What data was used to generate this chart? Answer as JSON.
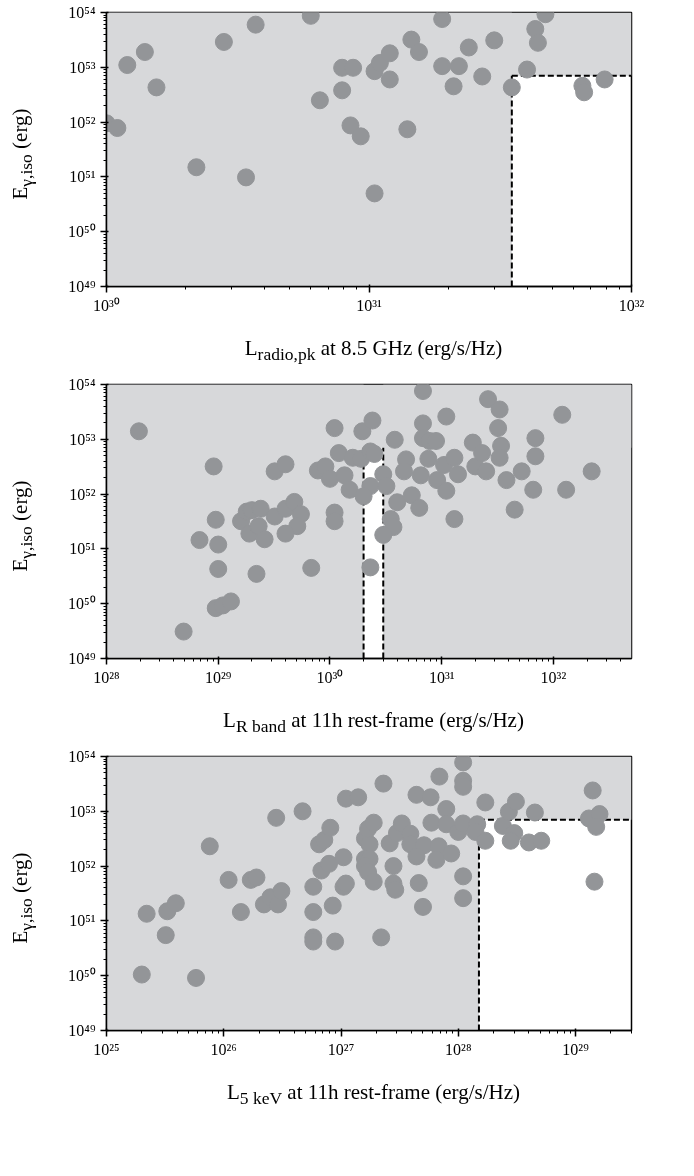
{
  "chart_data": [
    {
      "type": "scatter",
      "xlabel": "L$_{radio,pk}$ at 8.5 GHz (erg/s/Hz)",
      "ylabel": "E$_{γ,iso}$ (erg)",
      "color": "#939598",
      "marker": "circle",
      "log": "xy",
      "xlim": [
        1e+30,
        1e+32
      ],
      "ylim": [
        1e+49,
        1e+54
      ],
      "xticks": [
        {
          "value": 1e+30,
          "label": "10³⁰"
        },
        {
          "value": 1e+31,
          "label": "10³¹"
        },
        {
          "value": 1e+32,
          "label": "10³²"
        }
      ],
      "yticks": [
        {
          "value": 1e+49,
          "label": "10⁴⁹"
        },
        {
          "value": 1e+50,
          "label": "10⁵⁰"
        },
        {
          "value": 1e+51,
          "label": "10⁵¹"
        },
        {
          "value": 1e+52,
          "label": "10⁵²"
        },
        {
          "value": 1e+53,
          "label": "10⁵³"
        },
        {
          "value": 1e+54,
          "label": "10⁵⁴"
        }
      ],
      "bands": [
        {
          "axis": "x",
          "from": 1e+30,
          "to": 3.5e+31,
          "color": "#d7d8da"
        },
        {
          "axis": "y",
          "from": 7e+52,
          "to": 1e+54,
          "color": "#d7d8da"
        }
      ],
      "ref_lines": [
        {
          "axis": "x",
          "value": 3.5e+31,
          "color": "#000000",
          "line_style": "dashed"
        },
        {
          "axis": "y",
          "value": 7e+52,
          "color": "#000000",
          "line_style": "dashed"
        }
      ],
      "x": [
        1e+30,
        1.1e+30,
        1.2e+30,
        1.4e+30,
        1.55e+30,
        2.2e+30,
        2.8e+30,
        3.4e+30,
        3.7e+30,
        6e+30,
        6.5e+30,
        7.9e+30,
        8.7e+30,
        7.9e+30,
        8.5e+30,
        9.3e+30,
        1.05e+31,
        1.1e+31,
        1.2e+31,
        1.2e+31,
        1.05e+31,
        1.4e+31,
        1.45e+31,
        1.55e+31,
        1.9e+31,
        1.9e+31,
        2.1e+31,
        2.2e+31,
        2.4e+31,
        2.7e+31,
        3e+31,
        3.5e+31,
        4e+31,
        4.3e+31,
        4.4e+31,
        4.7e+31,
        6.5e+31,
        6.6e+31,
        7.9e+31
      ],
      "values": [
        9.5e+51,
        7.8e+51,
        1.1e+53,
        1.9e+53,
        4.3e+52,
        1.5e+51,
        2.9e+53,
        9.8e+50,
        6e+53,
        8.7e+53,
        2.5e+52,
        9.8e+52,
        9.8e+52,
        3.8e+52,
        8.7e+51,
        5.5e+51,
        8.5e+52,
        1.2e+53,
        1.8e+53,
        6e+52,
        5e+50,
        7.4e+51,
        3.2e+53,
        1.9e+53,
        7.6e+53,
        1.05e+53,
        4.5e+52,
        1.05e+53,
        2.3e+53,
        6.8e+52,
        3.1e+53,
        4.3e+52,
        9.1e+52,
        5e+53,
        2.8e+53,
        9.3e+53,
        4.6e+52,
        3.5e+52,
        6e+52
      ]
    },
    {
      "type": "scatter",
      "xlabel": "L$_{R band}$ at 11h rest-frame (erg/s/Hz)",
      "ylabel": "E$_{γ,iso}$ (erg)",
      "color": "#939598",
      "marker": "circle",
      "log": "xy",
      "xlim": [
        1e+28,
        5e+32
      ],
      "ylim": [
        1e+49,
        1e+54
      ],
      "xticks": [
        {
          "value": 1e+28,
          "label": "10²⁸"
        },
        {
          "value": 1e+29,
          "label": "10²⁹"
        },
        {
          "value": 1e+30,
          "label": "10³⁰"
        },
        {
          "value": 1e+31,
          "label": "10³¹"
        },
        {
          "value": 1e+32,
          "label": "10³²"
        }
      ],
      "yticks": [
        {
          "value": 1e+49,
          "label": "10⁴⁹"
        },
        {
          "value": 1e+50,
          "label": "10⁵⁰"
        },
        {
          "value": 1e+51,
          "label": "10⁵¹"
        },
        {
          "value": 1e+52,
          "label": "10⁵²"
        },
        {
          "value": 1e+53,
          "label": "10⁵³"
        },
        {
          "value": 1e+54,
          "label": "10⁵⁴"
        }
      ],
      "bands": [
        {
          "axis": "x",
          "from": 1e+28,
          "to": 2e+30,
          "color": "#d7d8da"
        },
        {
          "axis": "x",
          "from": 3e+30,
          "to": 5e+32,
          "color": "#d7d8da"
        },
        {
          "axis": "y",
          "from": 7e+52,
          "to": 1e+54,
          "color": "#d7d8da"
        }
      ],
      "ref_lines": [
        {
          "axis": "x",
          "value": 2e+30,
          "color": "#000000",
          "line_style": "dashed"
        },
        {
          "axis": "x",
          "value": 3e+30,
          "color": "#000000",
          "line_style": "dashed"
        }
      ],
      "x": [
        1.95e+28,
        4.9e+28,
        9.1e+28,
        9.5e+28,
        6.8e+28,
        1e+29,
        1e+29,
        9.5e+28,
        1.1e+29,
        1.3e+29,
        2.2e+29,
        1.6e+29,
        1.8e+29,
        2e+29,
        2.4e+29,
        1.9e+29,
        2.3e+29,
        2.6e+29,
        3.2e+29,
        3.2e+29,
        4e+29,
        4e+29,
        4.8e+29,
        5.5e+29,
        5.1e+29,
        4e+29,
        6.8e+29,
        7.8e+29,
        9.1e+29,
        1e+30,
        1.1e+30,
        1.2e+30,
        1.35e+30,
        1.5e+30,
        1.1e+30,
        1.1e+30,
        1.6e+30,
        1.9e+30,
        1.95e+30,
        2.4e+30,
        2.3e+30,
        2.5e+30,
        2.3e+30,
        2e+30,
        2.3e+30,
        3e+30,
        3.2e+30,
        4e+30,
        3.5e+30,
        3.7e+30,
        3e+30,
        3.8e+30,
        4.8e+30,
        4.6e+30,
        5.4e+30,
        6.3e+30,
        6.5e+30,
        6.8e+30,
        6.8e+30,
        6.8e+30,
        7.8e+30,
        8.9e+30,
        7.6e+30,
        9.1e+30,
        1.1e+31,
        1.05e+31,
        1.1e+31,
        1.3e+31,
        1.4e+31,
        1.3e+31,
        1.9e+31,
        2e+31,
        2.3e+31,
        2.5e+31,
        2.6e+31,
        3.3e+31,
        3.2e+31,
        3.4e+31,
        3.3e+31,
        3.8e+31,
        4.5e+31,
        5.2e+31,
        6.9e+31,
        6.9e+31,
        6.6e+31,
        1.2e+32,
        1.3e+32,
        2.2e+32
      ],
      "values": [
        1.4e+53,
        3.1e+49,
        3.2e+52,
        3.4e+51,
        1.45e+51,
        1.2e+51,
        4.3e+50,
        8.3e+49,
        9.3e+49,
        1.1e+50,
        3.5e+50,
        3.2e+51,
        4.8e+51,
        5.1e+51,
        5.4e+51,
        1.9e+51,
        2.6e+51,
        1.5e+51,
        3.9e+51,
        2.6e+52,
        3.5e+52,
        5.4e+51,
        7.2e+51,
        4.3e+51,
        2.6e+51,
        1.9e+51,
        4.5e+50,
        2.7e+52,
        3.2e+52,
        1.9e+52,
        1.6e+53,
        5.6e+52,
        2.2e+52,
        1.2e+52,
        4.6e+51,
        3.2e+51,
        4.6e+52,
        4.4e+52,
        1.4e+53,
        2.2e+53,
        6e+52,
        5.4e+52,
        1.4e+52,
        9.1e+51,
        4.6e+50,
        2.3e+52,
        1.4e+52,
        7.1e+51,
        3.5e+51,
        2.5e+51,
        1.8e+51,
        9.8e+52,
        4.3e+52,
        2.6e+52,
        9.5e+51,
        5.6e+51,
        2.2e+52,
        7.6e+53,
        1.95e+53,
        1.05e+53,
        9.3e+52,
        9.3e+52,
        4.4e+52,
        1.8e+52,
        1.15e+52,
        3.4e+52,
        2.6e+53,
        4.6e+52,
        2.3e+52,
        3.5e+51,
        8.7e+52,
        3.2e+52,
        5.6e+52,
        2.6e+52,
        5.4e+53,
        3.5e+53,
        1.6e+53,
        7.6e+52,
        4.6e+52,
        1.8e+52,
        5.2e+51,
        2.6e+52,
        1.05e+53,
        4.9e+52,
        1.2e+52,
        2.8e+53,
        1.2e+52,
        2.6e+52
      ]
    },
    {
      "type": "scatter",
      "xlabel": "L$_{5 keV}$ at 11h rest-frame (erg/s/Hz)",
      "ylabel": "E$_{γ,iso}$ (erg)",
      "color": "#939598",
      "marker": "circle",
      "log": "xy",
      "xlim": [
        1e+25,
        3e+29
      ],
      "ylim": [
        1e+49,
        1e+54
      ],
      "xticks": [
        {
          "value": 1e+25,
          "label": "10²⁵"
        },
        {
          "value": 1e+26,
          "label": "10²⁶"
        },
        {
          "value": 1e+27,
          "label": "10²⁷"
        },
        {
          "value": 1e+28,
          "label": "10²⁸"
        },
        {
          "value": 1e+29,
          "label": "10²⁹"
        }
      ],
      "yticks": [
        {
          "value": 1e+49,
          "label": "10⁴⁹"
        },
        {
          "value": 1e+50,
          "label": "10⁵⁰"
        },
        {
          "value": 1e+51,
          "label": "10⁵¹"
        },
        {
          "value": 1e+52,
          "label": "10⁵²"
        },
        {
          "value": 1e+53,
          "label": "10⁵³"
        },
        {
          "value": 1e+54,
          "label": "10⁵⁴"
        }
      ],
      "bands": [
        {
          "axis": "x",
          "from": 1e+25,
          "to": 1.5e+28,
          "color": "#d7d8da"
        },
        {
          "axis": "y",
          "from": 7e+52,
          "to": 1e+54,
          "color": "#d7d8da"
        }
      ],
      "ref_lines": [
        {
          "axis": "x",
          "value": 1.5e+28,
          "color": "#000000",
          "line_style": "dashed"
        },
        {
          "axis": "y",
          "value": 7e+52,
          "color": "#000000",
          "line_style": "dashed"
        }
      ],
      "x": [
        2e+25,
        5.8e+25,
        2.2e+25,
        3.3e+25,
        3.9e+25,
        3.2e+25,
        7.6e+25,
        1.1e+26,
        1.7e+26,
        1.9e+26,
        1.4e+26,
        2.2e+26,
        2.5e+26,
        2.9e+26,
        3.1e+26,
        2.8e+26,
        4.7e+26,
        5.8e+26,
        5.8e+26,
        5.8e+26,
        5.8e+26,
        8.9e+26,
        8.5e+26,
        6.8e+26,
        7.9e+26,
        1.05e+27,
        1.05e+27,
        1.1e+27,
        6.5e+26,
        7.2e+26,
        8.1e+26,
        1.1e+27,
        1.4e+27,
        1.6e+27,
        1.75e+27,
        1.7e+27,
        1.9e+27,
        1.6e+27,
        1.75e+27,
        1.6e+27,
        1.7e+27,
        1.9e+27,
        2.3e+27,
        2.2e+27,
        2.6e+27,
        2.8e+27,
        2.8e+27,
        2.9e+27,
        3e+27,
        3.3e+27,
        3.9e+27,
        3.9e+27,
        4.4e+27,
        5.8e+27,
        5.1e+27,
        4.4e+27,
        4.6e+27,
        5e+27,
        6.9e+27,
        6.8e+27,
        6.5e+27,
        8.7e+27,
        5.9e+27,
        7.9e+27,
        7.9e+27,
        1e+28,
        1.1e+28,
        1.1e+28,
        1.1e+28,
        1.1e+28,
        1.1e+28,
        1.1e+28,
        1.45e+28,
        1.4e+28,
        1.7e+28,
        1.7e+28,
        2.4e+28,
        2.7e+28,
        3.1e+28,
        3e+28,
        2.8e+28,
        4e+28,
        4.5e+28,
        5.1e+28,
        1.4e+29,
        1.3e+29,
        1.6e+29,
        1.5e+29,
        1.45e+29
      ],
      "values": [
        1.05e+50,
        9.1e+49,
        1.35e+51,
        1.5e+51,
        2.1e+51,
        5.5e+50,
        2.3e+52,
        5.6e+51,
        5.6e+51,
        6.2e+51,
        1.45e+51,
        2e+51,
        2.7e+51,
        2e+51,
        3.5e+51,
        7.6e+52,
        1e+53,
        4.2e+51,
        1.45e+51,
        5e+50,
        4.2e+50,
        4.2e+50,
        1.9e+51,
        8.3e+51,
        1.1e+52,
        1.45e+52,
        4.2e+51,
        4.8e+51,
        2.5e+52,
        3e+52,
        5e+52,
        1.7e+53,
        1.8e+53,
        3.2e+52,
        2.5e+52,
        4.8e+52,
        6.2e+52,
        1.35e+52,
        1.35e+52,
        1e+52,
        7.8e+51,
        5.2e+51,
        3.2e+53,
        5e+50,
        2.6e+52,
        1e+52,
        4.8e+51,
        3.7e+51,
        4e+52,
        6e+52,
        3.9e+52,
        2.5e+52,
        2e+53,
        1.8e+53,
        2.4e+52,
        1.5e+52,
        4.9e+51,
        1.8e+51,
        4.3e+53,
        2.3e+52,
        1.3e+52,
        1.7e+52,
        6.2e+52,
        1.1e+53,
        5.8e+52,
        4.2e+52,
        6e+52,
        7.8e+53,
        3.6e+53,
        2.8e+53,
        6.5e+51,
        2.6e+51,
        5.8e+52,
        4.2e+52,
        1.45e+53,
        2.9e+52,
        5.4e+52,
        9.8e+52,
        1.5e+53,
        4e+52,
        2.9e+52,
        2.7e+52,
        9.5e+52,
        2.9e+52,
        2.4e+53,
        7.4e+52,
        8.9e+52,
        5.2e+52,
        5.2e+51
      ]
    }
  ]
}
